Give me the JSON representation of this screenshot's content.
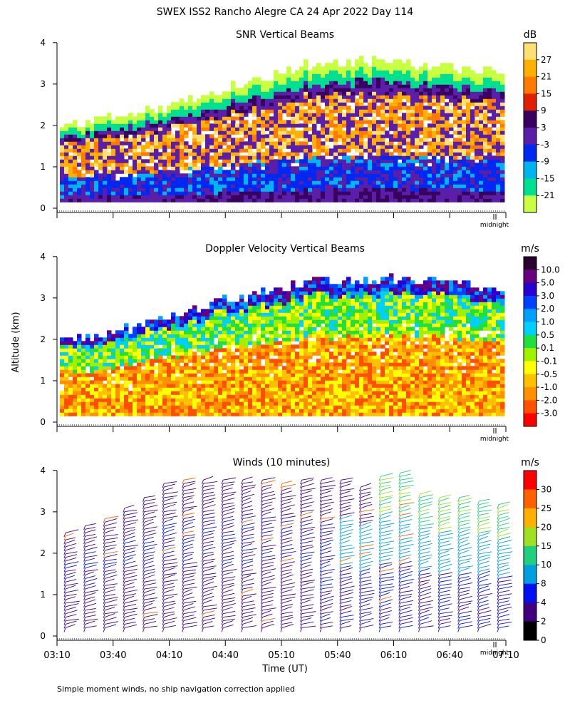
{
  "figure": {
    "title": "SWEX ISS2 Rancho Alegre CA  24 Apr 2022 Day 114",
    "ylabel": "Altitude (km)",
    "xlabel": "Time (UT)",
    "footnote": "Simple moment winds, no ship navigation correction applied",
    "midnight_label": "midnight"
  },
  "chart_data": [
    {
      "type": "heatmap",
      "title": "SNR Vertical Beams",
      "unit": "dB",
      "ylim": [
        0,
        4
      ],
      "yticks": [
        "0",
        "1",
        "2",
        "3",
        "4"
      ],
      "colorbar_labels": [
        "27",
        "21",
        "15",
        "9",
        "3",
        "-3",
        "-9",
        "-15",
        "-21"
      ],
      "colorbar_colors": [
        "#ffe070",
        "#ffb000",
        "#ff7a00",
        "#e02000",
        "#3a0060",
        "#5a1ea8",
        "#0028f0",
        "#00b4f0",
        "#00e090",
        "#c8ff40"
      ],
      "echo_top_km": [
        1.9,
        2.1,
        2.3,
        2.5,
        2.8,
        3.1,
        3.4,
        3.5,
        3.5,
        3.4,
        3.3,
        3.3
      ]
    },
    {
      "type": "heatmap",
      "title": "Doppler Velocity Vertical Beams",
      "unit": "m/s",
      "ylim": [
        0,
        4
      ],
      "yticks": [
        "0",
        "1",
        "2",
        "3",
        "4"
      ],
      "colorbar_labels": [
        "10.0",
        "5.0",
        "3.0",
        "2.0",
        "1.0",
        "0.5",
        "0.1",
        "-0.1",
        "-0.5",
        "-1.0",
        "-2.0",
        "-3.0"
      ],
      "colorbar_colors": [
        "#2a0030",
        "#6a0080",
        "#2800d0",
        "#0040ff",
        "#00a0ff",
        "#00d0ff",
        "#20e040",
        "#a0f000",
        "#ffff00",
        "#ffc000",
        "#ff9000",
        "#ff5000",
        "#ff0000"
      ],
      "echo_top_km": [
        1.9,
        2.1,
        2.3,
        2.6,
        2.9,
        3.1,
        3.3,
        3.4,
        3.4,
        3.4,
        3.3,
        3.2
      ]
    },
    {
      "type": "scatter",
      "title": "Winds (10 minutes)",
      "unit": "m/s",
      "ylim": [
        0,
        4
      ],
      "yticks": [
        "0",
        "1",
        "2",
        "3",
        "4"
      ],
      "x": [
        "03:10",
        "03:40",
        "04:10",
        "04:40",
        "05:10",
        "05:40",
        "06:10",
        "06:40",
        "07:10"
      ],
      "colorbar_labels": [
        "30",
        "25",
        "20",
        "15",
        "10",
        "8",
        "4",
        "2",
        "0"
      ],
      "colorbar_colors": [
        "#ff0000",
        "#ff6000",
        "#ffb000",
        "#a0e020",
        "#20d080",
        "#00a0e0",
        "#0010f0",
        "#400080",
        "#000000"
      ],
      "profile_top_km": [
        2.5,
        2.7,
        2.9,
        3.1,
        3.4,
        3.7,
        3.8,
        3.8,
        3.8,
        3.8,
        3.8,
        3.7,
        3.8,
        3.8,
        3.8,
        3.6,
        3.9,
        4.0,
        3.5,
        3.4,
        3.4,
        3.3,
        3.2
      ]
    }
  ]
}
